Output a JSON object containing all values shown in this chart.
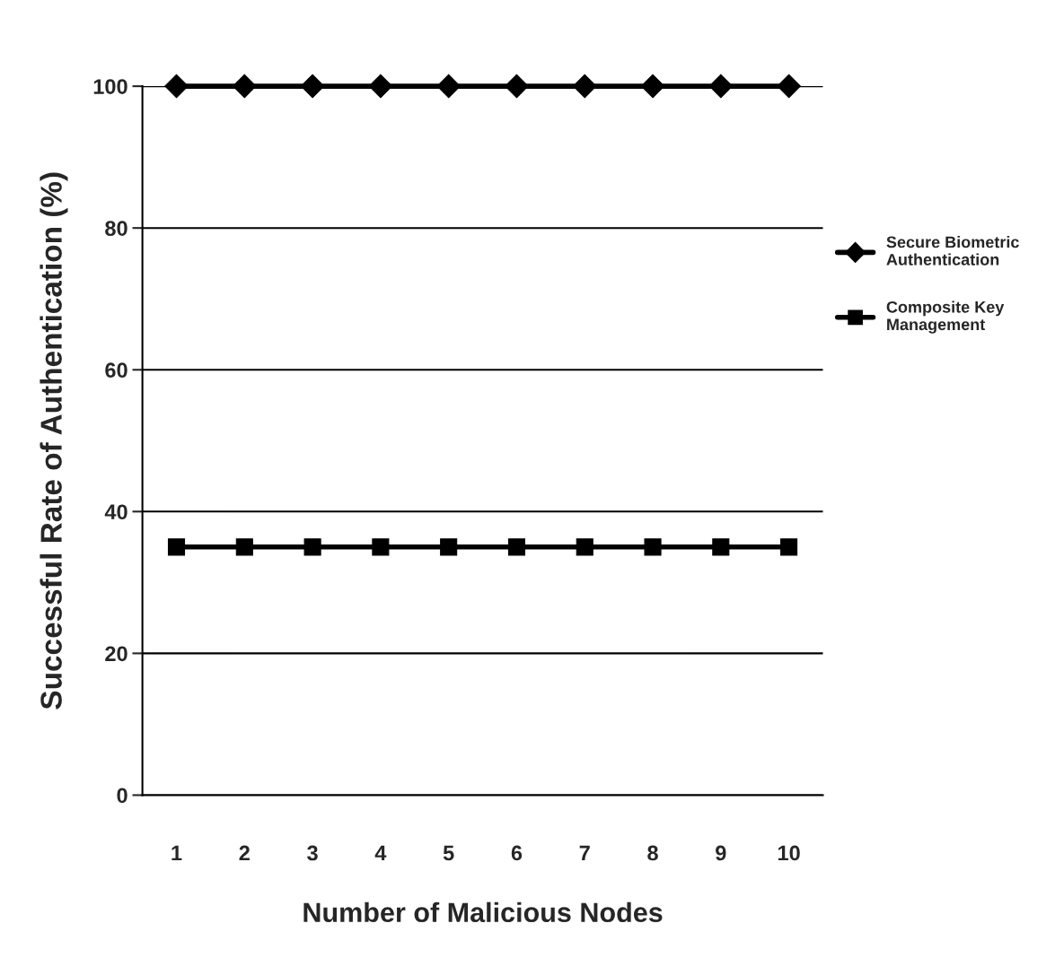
{
  "chart_data": {
    "type": "line",
    "xlabel": "Number of Malicious Nodes",
    "ylabel": "Successful Rate of Authentication (%)",
    "categories": [
      "1",
      "2",
      "3",
      "4",
      "5",
      "6",
      "7",
      "8",
      "9",
      "10"
    ],
    "series": [
      {
        "name": "Secure Biometric Authentication",
        "color": "#000000",
        "marker": "diamond",
        "values": [
          100,
          100,
          100,
          100,
          100,
          100,
          100,
          100,
          100,
          100
        ]
      },
      {
        "name": "Composite Key Management",
        "color": "#000000",
        "marker": "square",
        "values": [
          35,
          35,
          35,
          35,
          35,
          35,
          35,
          35,
          35,
          35
        ]
      }
    ],
    "ylim": [
      0,
      100
    ],
    "yticks": [
      0,
      20,
      40,
      60,
      80,
      100
    ],
    "grid": "y",
    "legend": "right",
    "line_style": "solid"
  }
}
